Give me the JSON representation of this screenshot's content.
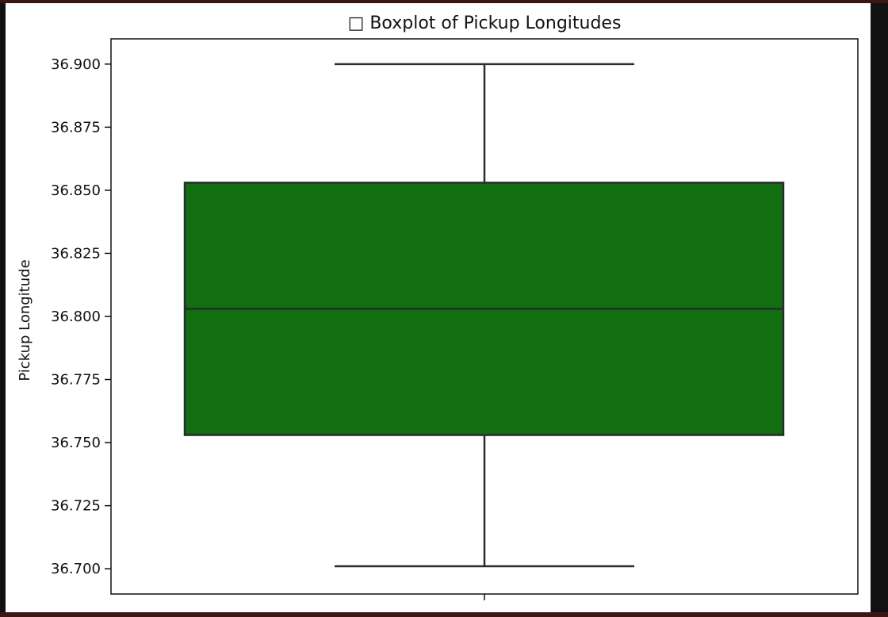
{
  "chart_data": {
    "type": "box",
    "title": "□ Boxplot of Pickup Longitudes",
    "xlabel": "",
    "ylabel": "Pickup Longitude",
    "ylim": [
      36.69,
      36.91
    ],
    "y_ticks": [
      "36.700",
      "36.725",
      "36.750",
      "36.775",
      "36.800",
      "36.825",
      "36.850",
      "36.875",
      "36.900"
    ],
    "grid": false,
    "legend": "none",
    "box": {
      "min": 36.701,
      "q1": 36.753,
      "median": 36.803,
      "q3": 36.853,
      "max": 36.9
    },
    "colors": {
      "box_fill": "#116e11",
      "box_edge": "#2b2b2b",
      "axis": "#111111"
    }
  }
}
